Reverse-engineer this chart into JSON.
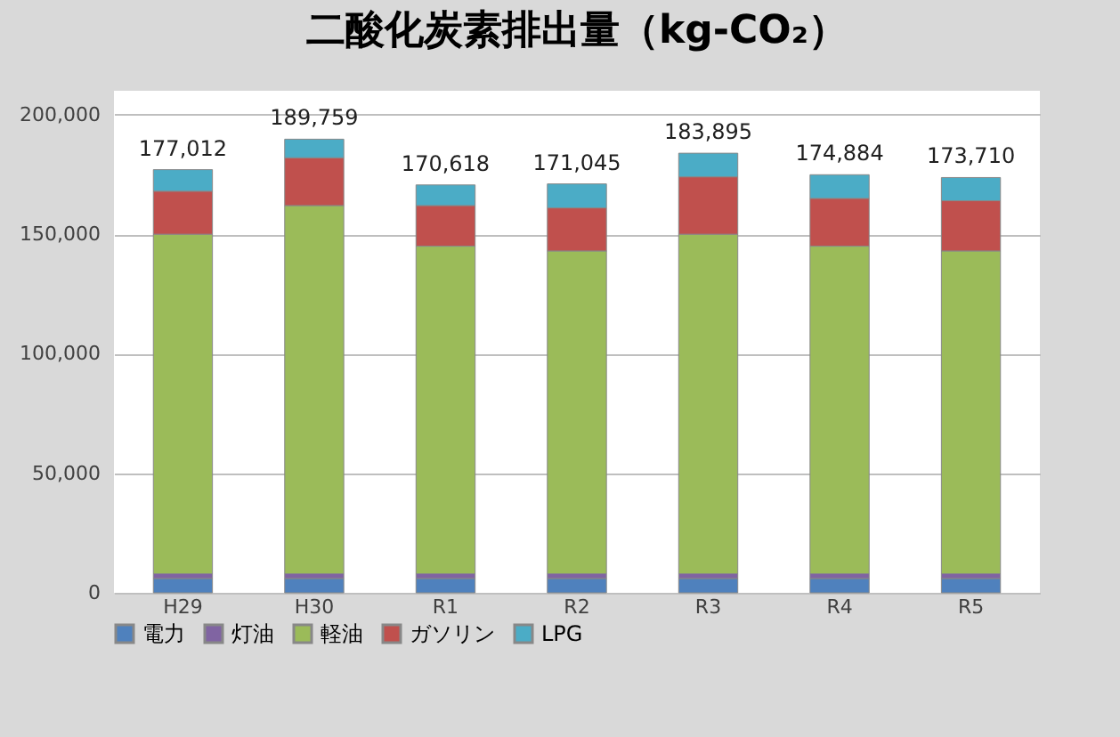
{
  "chart_data": {
    "type": "bar",
    "title": "二酸化炭素排出量（kg-CO₂）",
    "stacked": true,
    "categories": [
      "H29",
      "H30",
      "R1",
      "R2",
      "R3",
      "R4",
      "R5"
    ],
    "series": [
      {
        "name": "電力",
        "color": "#4f81bd",
        "values": [
          6000,
          6000,
          6000,
          6000,
          6000,
          6000,
          6000
        ]
      },
      {
        "name": "灯油",
        "color": "#8064a2",
        "values": [
          2000,
          2000,
          2000,
          2000,
          2000,
          2000,
          2000
        ]
      },
      {
        "name": "軽油",
        "color": "#9bbb59",
        "values": [
          142000,
          154000,
          137000,
          135000,
          142000,
          137000,
          135000
        ]
      },
      {
        "name": "ガソリン",
        "color": "#c0504d",
        "values": [
          18000,
          20000,
          17000,
          18000,
          24000,
          20000,
          21000
        ]
      },
      {
        "name": "LPG",
        "color": "#4bacc6",
        "values": [
          9012,
          7759,
          8618,
          10045,
          9895,
          9884,
          9710
        ]
      }
    ],
    "totals": [
      "177,012",
      "189,759",
      "170,618",
      "171,045",
      "183,895",
      "174,884",
      "173,710"
    ],
    "ylim": [
      0,
      210000
    ],
    "yticks": [
      0,
      {
        "value": 50000,
        "label": "50,000"
      },
      {
        "value": 100000,
        "label": "100,000"
      },
      {
        "value": 150000,
        "label": "150,000"
      },
      {
        "value": 200000,
        "label": "200,000"
      }
    ],
    "grid": "y",
    "legend": "bottom"
  }
}
